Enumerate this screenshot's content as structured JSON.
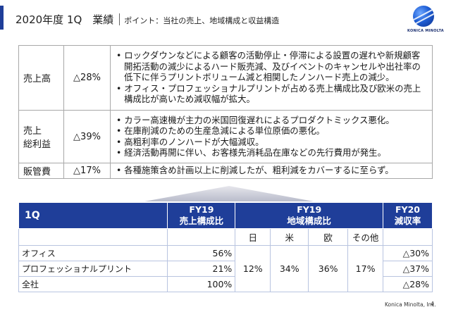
{
  "header": {
    "title": "2020年度 1Q　業績",
    "subtitle": "ポイント：当社の売上、地域構成と収益構造"
  },
  "logo": {
    "text": "KONICA MINOLTA"
  },
  "summary": {
    "rows": [
      {
        "label": "売上高",
        "change": "△28%",
        "bullets": [
          "ロックダウンなどによる顧客の活動停止・停滞による設置の遅れや新規顧客開拓活動の減少によるハード販売減、及びイベントのキャンセルや出社率の低下に伴うプリントボリューム減と相関したノンハード売上の減少。",
          "オフィス・プロフェッショナルプリントが占める売上構成比及び欧米の売上構成比が高いため減収幅が拡大。"
        ]
      },
      {
        "label": "売上\n総利益",
        "change": "△39%",
        "bullets": [
          "カラー高速機が主力の米国回復遅れによるプロダクトミックス悪化。",
          "在庫削減のための生産急減による単位原価の悪化。",
          "高粗利率のノンハードが大幅減収。",
          "経済活動再開に伴い、お客様先消耗品在庫などの先行費用が発生。"
        ]
      },
      {
        "label": "販管費",
        "change": "△17%",
        "bullets": [
          "各種施策含め計画以上に削減したが、粗利減をカバーするに至らず。"
        ]
      }
    ]
  },
  "breakdown": {
    "quarter": "1Q",
    "col_share": "FY19\n売上構成比",
    "col_region": "FY19\n地域構成比",
    "col_decline": "FY20\n減収率",
    "regions": [
      "日",
      "米",
      "欧",
      "その他"
    ],
    "region_values": [
      "12%",
      "34%",
      "36%",
      "17%"
    ],
    "rows": [
      {
        "name": "オフィス",
        "share": "56%",
        "decline": "△30%"
      },
      {
        "name": "プロフェッショナルプリント",
        "share": "21%",
        "decline": "△37%"
      },
      {
        "name": "全社",
        "share": "100%",
        "decline": "△28%"
      }
    ]
  },
  "footer": {
    "company": "Konica Minolta, Inc.",
    "page": "4"
  }
}
